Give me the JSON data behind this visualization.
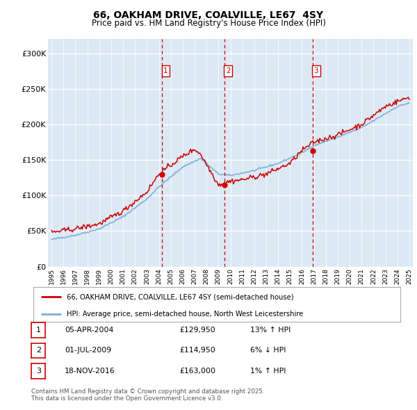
{
  "title": "66, OAKHAM DRIVE, COALVILLE, LE67  4SY",
  "subtitle": "Price paid vs. HM Land Registry's House Price Index (HPI)",
  "legend_line1": "66, OAKHAM DRIVE, COALVILLE, LE67 4SY (semi-detached house)",
  "legend_line2": "HPI: Average price, semi-detached house, North West Leicestershire",
  "footer_line1": "Contains HM Land Registry data © Crown copyright and database right 2025.",
  "footer_line2": "This data is licensed under the Open Government Licence v3.0.",
  "transactions": [
    {
      "num": "1",
      "date": "05-APR-2004",
      "price": "£129,950",
      "hpi": "13% ↑ HPI",
      "x_year": 2004.27
    },
    {
      "num": "2",
      "date": "01-JUL-2009",
      "price": "£114,950",
      "hpi": "6% ↓ HPI",
      "x_year": 2009.5
    },
    {
      "num": "3",
      "date": "18-NOV-2016",
      "price": "£163,000",
      "hpi": "1% ↑ HPI",
      "x_year": 2016.88
    }
  ],
  "transaction_prices": [
    129950,
    114950,
    163000
  ],
  "ylim": [
    0,
    320000
  ],
  "xlim_start": 1994.7,
  "xlim_end": 2025.3,
  "hpi_color": "#7bafd4",
  "price_color": "#cc0000",
  "plot_bg_color": "#dce9f5",
  "grid_color": "#ffffff",
  "vline_color": "#cc0000",
  "border_color": "#cc0000",
  "yticks": [
    0,
    50000,
    100000,
    150000,
    200000,
    250000,
    300000
  ],
  "ylabels": [
    "£0",
    "£50K",
    "£100K",
    "£150K",
    "£200K",
    "£250K",
    "£300K"
  ],
  "hpi_anchors_x": [
    1995,
    1997,
    1999,
    2001,
    2003,
    2004,
    2006,
    2007.5,
    2009,
    2010,
    2012,
    2014,
    2016,
    2017,
    2019,
    2021,
    2023,
    2024,
    2025
  ],
  "hpi_anchors_y": [
    38000,
    44000,
    53000,
    70000,
    95000,
    112000,
    140000,
    152000,
    130000,
    128000,
    135000,
    145000,
    160000,
    170000,
    182000,
    195000,
    215000,
    225000,
    230000
  ],
  "price_anchors_x": [
    1995,
    1997,
    1999,
    2001,
    2003,
    2004,
    2006,
    2007,
    2007.5,
    2009,
    2010,
    2011,
    2013,
    2015,
    2016,
    2017,
    2019,
    2021,
    2023,
    2024,
    2025
  ],
  "price_anchors_y": [
    48000,
    53000,
    60000,
    78000,
    105000,
    130000,
    155000,
    165000,
    158000,
    114950,
    120000,
    122000,
    130000,
    145000,
    163000,
    175000,
    185000,
    200000,
    225000,
    232000,
    238000
  ],
  "noise_seed": 42,
  "hpi_noise_std": 600,
  "price_noise_std": 1800
}
